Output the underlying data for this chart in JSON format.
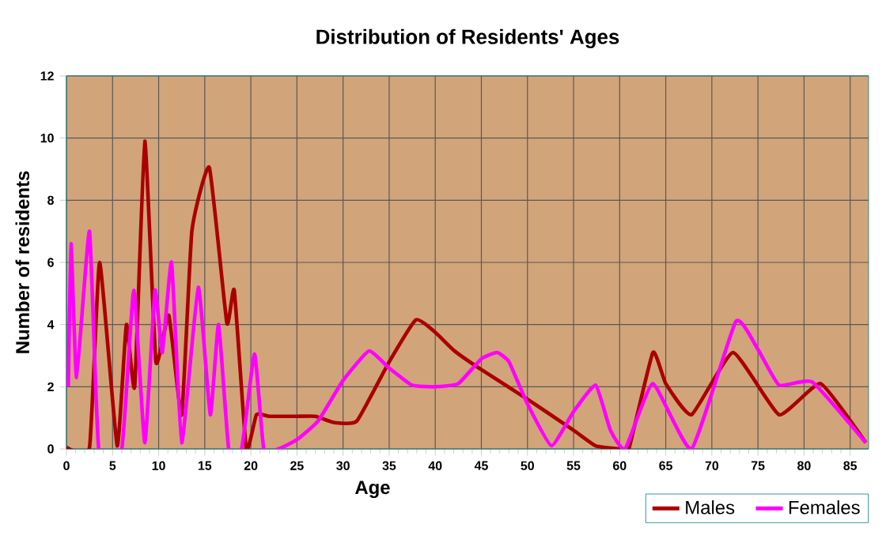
{
  "chart_data": {
    "type": "line",
    "title": "Distribution of Residents' Ages",
    "xlabel": "Age",
    "ylabel": "Number of residents",
    "xlim": [
      0,
      87
    ],
    "ylim": [
      0,
      12
    ],
    "xticks": [
      0,
      5,
      10,
      15,
      20,
      25,
      30,
      35,
      40,
      45,
      50,
      55,
      60,
      65,
      70,
      75,
      80,
      85
    ],
    "yticks": [
      0,
      2,
      4,
      6,
      8,
      10,
      12
    ],
    "grid": true,
    "legend": "bottom right",
    "marker": "none",
    "line_style": "solid",
    "series": [
      {
        "name": "Males",
        "color": "#aa0000",
        "x": [
          0,
          2.5,
          3.6,
          5.5,
          6.5,
          7.4,
          8.5,
          9.7,
          11.1,
          12.5,
          13.6,
          15.5,
          17.4,
          18.2,
          19.5,
          20.6,
          22,
          25,
          27,
          29,
          31.5,
          35,
          37.9,
          40,
          42.1,
          45,
          50,
          55,
          57.4,
          60,
          61,
          63.6,
          65,
          67.8,
          72.3,
          77.3,
          81.8,
          86.7
        ],
        "values": [
          0.05,
          0.05,
          6,
          0.1,
          4,
          2,
          9.9,
          2.8,
          4.3,
          1.1,
          7,
          9.05,
          4.05,
          5.1,
          0,
          1.1,
          1.05,
          1.05,
          1.05,
          0.85,
          0.9,
          2.8,
          4.15,
          3.75,
          3.15,
          2.55,
          1.6,
          0.6,
          0.1,
          0,
          0,
          3.1,
          2.1,
          1.1,
          3.1,
          1.1,
          2.1,
          0.2
        ]
      },
      {
        "name": "Females",
        "color": "#ff00ff",
        "x": [
          0.2,
          0.5,
          1.1,
          2.5,
          3.5,
          6,
          7.3,
          8.5,
          9.6,
          10.4,
          11.4,
          12.5,
          14.3,
          15.6,
          16.5,
          17.6,
          19,
          20.4,
          21.4,
          23,
          25,
          27.3,
          30,
          32.8,
          35,
          37.5,
          40,
          42.5,
          45,
          46.7,
          48,
          50,
          52.6,
          55,
          57.4,
          59,
          60.6,
          63.6,
          67.8,
          72.6,
          75,
          77.3,
          80.9,
          86.7
        ],
        "values": [
          2,
          6.6,
          2.3,
          7,
          0,
          0,
          5.1,
          0.2,
          5.1,
          3.1,
          6,
          0.2,
          5.2,
          1.1,
          4,
          0,
          0,
          3.05,
          0,
          0,
          0.3,
          0.9,
          2.2,
          3.15,
          2.6,
          2.05,
          2,
          2.1,
          2.9,
          3.1,
          2.8,
          1.45,
          0.1,
          1.2,
          2.05,
          0.6,
          0,
          2.1,
          0,
          4.1,
          3.2,
          2.05,
          2.15,
          0.2
        ]
      }
    ]
  }
}
